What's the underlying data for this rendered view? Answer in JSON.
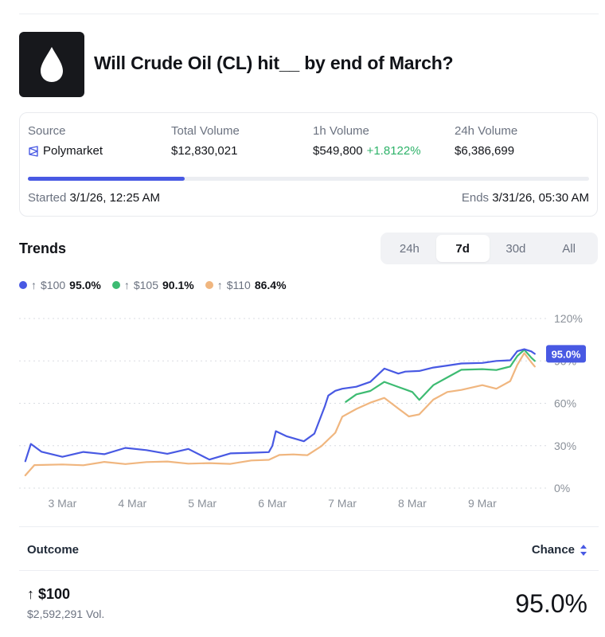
{
  "market": {
    "title": "Will Crude Oil (CL) hit__ by end of March?",
    "icon": "oil-drop-icon"
  },
  "info": {
    "source_label": "Source",
    "source_value": "Polymarket",
    "total_volume_label": "Total Volume",
    "total_volume_value": "$12,830,021",
    "h1_volume_label": "1h Volume",
    "h1_volume_value": "$549,800",
    "h1_volume_change": "+1.8122%",
    "h24_volume_label": "24h Volume",
    "h24_volume_value": "$6,386,699",
    "progress_fraction": 0.28,
    "started_label": "Started",
    "started_value": "3/1/26, 12:25 AM",
    "ends_label": "Ends",
    "ends_value": "3/31/26, 05:30 AM"
  },
  "trends": {
    "title": "Trends",
    "tabs": [
      "24h",
      "7d",
      "30d",
      "All"
    ],
    "active_tab": "7d",
    "legend": [
      {
        "arrow": "↑",
        "name": "$100",
        "value": "95.0%",
        "color": "#4859e3"
      },
      {
        "arrow": "↑",
        "name": "$105",
        "value": "90.1%",
        "color": "#3dbb72"
      },
      {
        "arrow": "↑",
        "name": "$110",
        "value": "86.4%",
        "color": "#f0b67f"
      }
    ]
  },
  "chart_data": {
    "type": "line",
    "x_ticks": [
      "3 Mar",
      "4 Mar",
      "5 Mar",
      "6 Mar",
      "7 Mar",
      "8 Mar",
      "9 Mar"
    ],
    "y_ticks": [
      "0%",
      "30%",
      "60%",
      "90%",
      "120%"
    ],
    "ylim": [
      0,
      120
    ],
    "xlim": [
      2.45,
      9.9
    ],
    "grid": true,
    "current_label": "95.0%",
    "series": [
      {
        "name": "$100",
        "color": "#4859e3",
        "x": [
          2.47,
          2.55,
          2.7,
          3.0,
          3.3,
          3.6,
          3.9,
          4.2,
          4.5,
          4.8,
          5.1,
          5.4,
          5.7,
          5.95,
          6.0,
          6.05,
          6.2,
          6.45,
          6.6,
          6.75,
          6.8,
          6.9,
          7.0,
          7.2,
          7.4,
          7.6,
          7.8,
          7.9,
          8.1,
          8.3,
          8.5,
          8.7,
          9.0,
          9.2,
          9.4,
          9.5,
          9.6,
          9.7,
          9.75
        ],
        "y": [
          19,
          31,
          26,
          23,
          25,
          24,
          29,
          26,
          24,
          28,
          21,
          24,
          25,
          26,
          29,
          40,
          37,
          34,
          38,
          58,
          66,
          68,
          70,
          72,
          76,
          84,
          81,
          83,
          82,
          85,
          87,
          89,
          88,
          90,
          91,
          96,
          98,
          97,
          95
        ]
      },
      {
        "name": "$105",
        "color": "#3dbb72",
        "x": [
          7.05,
          7.2,
          7.4,
          7.6,
          7.8,
          8.0,
          8.1,
          8.3,
          8.5,
          8.7,
          9.0,
          9.2,
          9.4,
          9.5,
          9.6,
          9.7,
          9.75
        ],
        "y": [
          61,
          66,
          69,
          76,
          71,
          68,
          63,
          72,
          78,
          84,
          85,
          83,
          86,
          94,
          97,
          92,
          90
        ]
      },
      {
        "name": "$110",
        "color": "#f0b67f",
        "x": [
          2.47,
          2.6,
          3.0,
          3.3,
          3.6,
          3.9,
          4.2,
          4.5,
          4.8,
          5.1,
          5.4,
          5.7,
          5.95,
          6.1,
          6.3,
          6.5,
          6.7,
          6.9,
          7.0,
          7.2,
          7.4,
          7.6,
          7.8,
          7.95,
          8.1,
          8.3,
          8.5,
          8.7,
          9.0,
          9.2,
          9.4,
          9.5,
          9.6,
          9.7,
          9.75
        ],
        "y": [
          9,
          16,
          17,
          17,
          18,
          17,
          19,
          18,
          17,
          18,
          18,
          19,
          20,
          24,
          23,
          23,
          30,
          40,
          50,
          56,
          61,
          63,
          56,
          51,
          53,
          62,
          68,
          70,
          72,
          70,
          76,
          88,
          95,
          89,
          86
        ]
      }
    ]
  },
  "outcomes": {
    "outcome_header": "Outcome",
    "chance_header": "Chance",
    "rows": [
      {
        "arrow": "↑",
        "name": "$100",
        "volume": "$2,592,291 Vol.",
        "chance": "95.0%"
      }
    ]
  }
}
